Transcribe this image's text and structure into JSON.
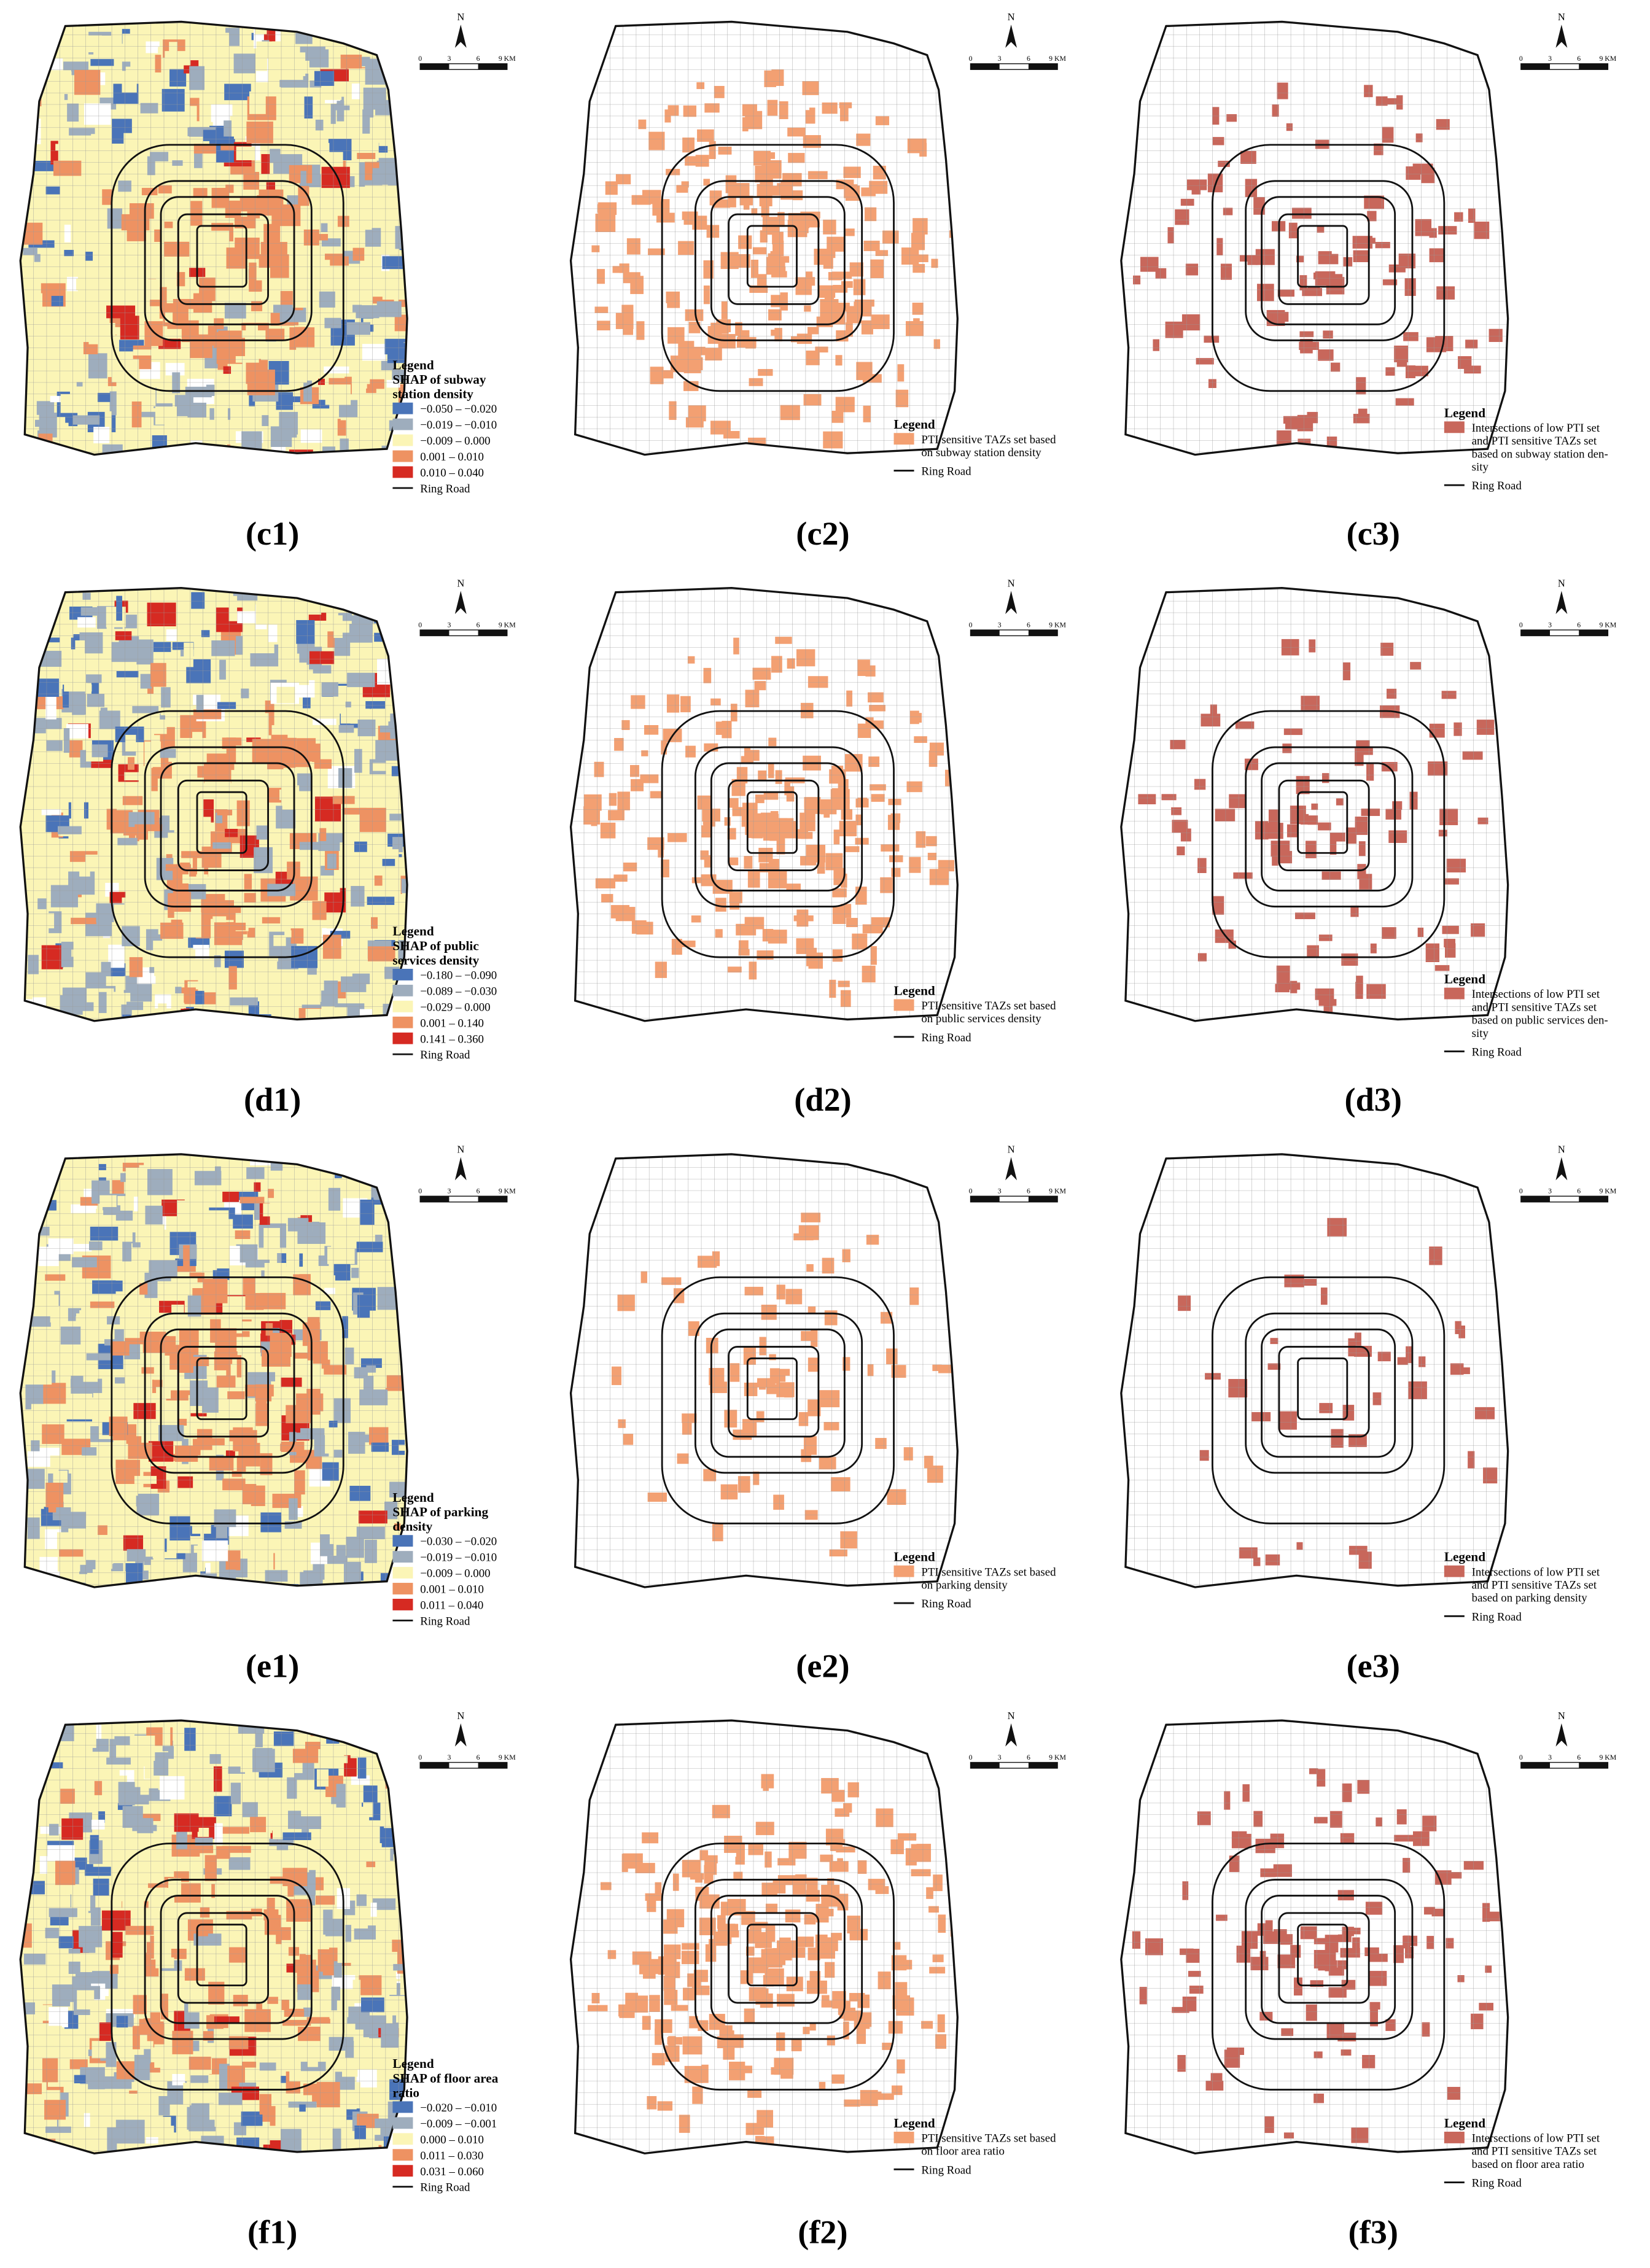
{
  "scale_bar": {
    "north": "N",
    "labels": [
      "0",
      "3",
      "6",
      "9 KM"
    ]
  },
  "panels": [
    {
      "label": "(c1)",
      "legend": {
        "title": "Legend",
        "subtitle": [
          "SHAP of subway",
          "station density"
        ],
        "items": [
          {
            "label": [
              "−0.050 – −0.020"
            ],
            "color": "#4a74b8"
          },
          {
            "label": [
              "−0.019 – −0.010"
            ],
            "color": "#9eadbd"
          },
          {
            "label": [
              "−0.009 – 0.000"
            ],
            "color": "#fbf5b6"
          },
          {
            "label": [
              "0.001 – 0.010"
            ],
            "color": "#ee9262"
          },
          {
            "label": [
              "0.010 – 0.040"
            ],
            "color": "#d62a22"
          }
        ],
        "line": "Ring Road"
      }
    },
    {
      "label": "(c2)",
      "legend": {
        "title": "Legend",
        "items": [
          {
            "label": [
              "PTI sensitive TAZs set based",
              "on subway station density"
            ],
            "color": "#f3a072"
          }
        ],
        "line": "Ring Road"
      }
    },
    {
      "label": "(c3)",
      "legend": {
        "title": "Legend",
        "items": [
          {
            "label": [
              "Intersections of low PTI set",
              "and PTI sensitive TAZs set",
              "based on subway station den-",
              "sity"
            ],
            "color": "#c8675b"
          }
        ],
        "line": "Ring Road"
      }
    },
    {
      "label": "(d1)",
      "legend": {
        "title": "Legend",
        "subtitle": [
          "SHAP of public",
          "services density"
        ],
        "items": [
          {
            "label": [
              "−0.180 – −0.090"
            ],
            "color": "#4a74b8"
          },
          {
            "label": [
              "−0.089 – −0.030"
            ],
            "color": "#9eadbd"
          },
          {
            "label": [
              "−0.029 – 0.000"
            ],
            "color": "#fbf5b6"
          },
          {
            "label": [
              "0.001 – 0.140"
            ],
            "color": "#ee9262"
          },
          {
            "label": [
              "0.141 – 0.360"
            ],
            "color": "#d62a22"
          }
        ],
        "line": "Ring Road"
      }
    },
    {
      "label": "(d2)",
      "legend": {
        "title": "Legend",
        "items": [
          {
            "label": [
              "PTI sensitive TAZs set based",
              "on public services density"
            ],
            "color": "#f3a072"
          }
        ],
        "line": "Ring Road"
      }
    },
    {
      "label": "(d3)",
      "legend": {
        "title": "Legend",
        "items": [
          {
            "label": [
              "Intersections of low PTI set",
              "and PTI sensitive TAZs set",
              "based on public services den-",
              "sity"
            ],
            "color": "#c8675b"
          }
        ],
        "line": "Ring Road"
      }
    },
    {
      "label": "(e1)",
      "legend": {
        "title": "Legend",
        "subtitle": [
          "SHAP of parking",
          "density"
        ],
        "items": [
          {
            "label": [
              "−0.030 – −0.020"
            ],
            "color": "#4a74b8"
          },
          {
            "label": [
              "−0.019 – −0.010"
            ],
            "color": "#9eadbd"
          },
          {
            "label": [
              "−0.009 – 0.000"
            ],
            "color": "#fbf5b6"
          },
          {
            "label": [
              "0.001 – 0.010"
            ],
            "color": "#ee9262"
          },
          {
            "label": [
              "0.011 – 0.040"
            ],
            "color": "#d62a22"
          }
        ],
        "line": "Ring Road"
      }
    },
    {
      "label": "(e2)",
      "legend": {
        "title": "Legend",
        "items": [
          {
            "label": [
              "PTI sensitive TAZs set based",
              "on parking density"
            ],
            "color": "#f3a072"
          }
        ],
        "line": "Ring Road"
      }
    },
    {
      "label": "(e3)",
      "legend": {
        "title": "Legend",
        "items": [
          {
            "label": [
              "Intersections of low PTI set",
              "and PTI sensitive TAZs set",
              "based on parking density"
            ],
            "color": "#c8675b"
          }
        ],
        "line": "Ring Road"
      }
    },
    {
      "label": "(f1)",
      "legend": {
        "title": "Legend",
        "subtitle": [
          "SHAP of floor area",
          "ratio"
        ],
        "items": [
          {
            "label": [
              "−0.020 – −0.010"
            ],
            "color": "#4a74b8"
          },
          {
            "label": [
              "−0.009 – −0.001"
            ],
            "color": "#9eadbd"
          },
          {
            "label": [
              "0.000 – 0.010"
            ],
            "color": "#fbf5b6"
          },
          {
            "label": [
              "0.011 – 0.030"
            ],
            "color": "#ee9262"
          },
          {
            "label": [
              "0.031 – 0.060"
            ],
            "color": "#d62a22"
          }
        ],
        "line": "Ring Road"
      }
    },
    {
      "label": "(f2)",
      "legend": {
        "title": "Legend",
        "items": [
          {
            "label": [
              "PTI sensitive TAZs set based",
              "on floor area ratio"
            ],
            "color": "#f3a072"
          }
        ],
        "line": "Ring Road"
      }
    },
    {
      "label": "(f3)",
      "legend": {
        "title": "Legend",
        "items": [
          {
            "label": [
              "Intersections of low PTI set",
              "and PTI sensitive TAZs set",
              "based on floor area ratio"
            ],
            "color": "#c8675b"
          }
        ],
        "line": "Ring Road"
      }
    }
  ]
}
